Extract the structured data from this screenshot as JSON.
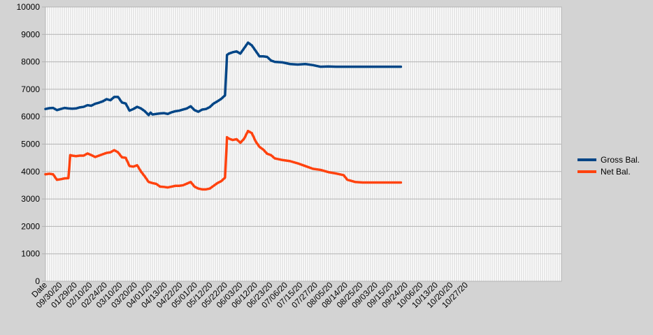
{
  "chart_data": {
    "type": "line",
    "title": "",
    "xlabel": "",
    "ylabel": "",
    "ylim": [
      0,
      10000
    ],
    "y_ticks": [
      "0",
      "1000",
      "2000",
      "3000",
      "4000",
      "5000",
      "6000",
      "7000",
      "8000",
      "9000",
      "10000"
    ],
    "x_tick_labels": [
      "Date",
      "09/30/20",
      "01/29/20",
      "02/10/20",
      "02/24/20",
      "03/10/20",
      "03/20/20",
      "04/01/20",
      "04/13/20",
      "04/22/20",
      "05/01/20",
      "05/12/20",
      "05/22/20",
      "06/03/20",
      "06/12/20",
      "06/23/20",
      "07/06/20",
      "07/15/20",
      "07/27/20",
      "08/05/20",
      "08/14/20",
      "08/25/20",
      "09/03/20",
      "09/15/20",
      "09/24/20",
      "10/06/20",
      "10/13/20",
      "10/20/20",
      "10/27/20"
    ],
    "grid": true,
    "legend_position": "right",
    "series": [
      {
        "name": "Gross Bal.",
        "color": "#004586",
        "points": [
          [
            0,
            6280
          ],
          [
            2,
            6310
          ],
          [
            4,
            6320
          ],
          [
            6,
            6240
          ],
          [
            8,
            6280
          ],
          [
            10,
            6320
          ],
          [
            12,
            6300
          ],
          [
            14,
            6290
          ],
          [
            16,
            6300
          ],
          [
            18,
            6340
          ],
          [
            20,
            6360
          ],
          [
            22,
            6420
          ],
          [
            24,
            6400
          ],
          [
            26,
            6470
          ],
          [
            28,
            6510
          ],
          [
            30,
            6560
          ],
          [
            32,
            6640
          ],
          [
            34,
            6600
          ],
          [
            36,
            6720
          ],
          [
            38,
            6720
          ],
          [
            40,
            6520
          ],
          [
            42,
            6480
          ],
          [
            44,
            6220
          ],
          [
            46,
            6280
          ],
          [
            48,
            6360
          ],
          [
            50,
            6300
          ],
          [
            52,
            6200
          ],
          [
            54,
            6060
          ],
          [
            55,
            6150
          ],
          [
            56,
            6080
          ],
          [
            58,
            6100
          ],
          [
            60,
            6120
          ],
          [
            62,
            6130
          ],
          [
            64,
            6100
          ],
          [
            66,
            6160
          ],
          [
            68,
            6200
          ],
          [
            70,
            6220
          ],
          [
            72,
            6260
          ],
          [
            74,
            6300
          ],
          [
            76,
            6380
          ],
          [
            78,
            6240
          ],
          [
            80,
            6180
          ],
          [
            82,
            6260
          ],
          [
            84,
            6280
          ],
          [
            86,
            6350
          ],
          [
            88,
            6480
          ],
          [
            90,
            6560
          ],
          [
            92,
            6650
          ],
          [
            94,
            6780
          ],
          [
            95,
            8250
          ],
          [
            96,
            8300
          ],
          [
            98,
            8350
          ],
          [
            100,
            8380
          ],
          [
            102,
            8300
          ],
          [
            104,
            8500
          ],
          [
            106,
            8700
          ],
          [
            107,
            8650
          ],
          [
            108,
            8600
          ],
          [
            110,
            8400
          ],
          [
            112,
            8200
          ],
          [
            114,
            8200
          ],
          [
            116,
            8180
          ],
          [
            118,
            8050
          ],
          [
            120,
            8000
          ],
          [
            124,
            7980
          ],
          [
            128,
            7920
          ],
          [
            132,
            7900
          ],
          [
            136,
            7920
          ],
          [
            140,
            7880
          ],
          [
            144,
            7820
          ],
          [
            148,
            7830
          ],
          [
            152,
            7820
          ],
          [
            156,
            7820
          ],
          [
            160,
            7820
          ],
          [
            170,
            7820
          ],
          [
            180,
            7820
          ],
          [
            186,
            7820
          ]
        ]
      },
      {
        "name": "Net Bal.",
        "color": "#ff420e",
        "points": [
          [
            0,
            3900
          ],
          [
            2,
            3920
          ],
          [
            4,
            3900
          ],
          [
            6,
            3700
          ],
          [
            8,
            3720
          ],
          [
            10,
            3750
          ],
          [
            12,
            3760
          ],
          [
            13,
            4600
          ],
          [
            14,
            4580
          ],
          [
            16,
            4560
          ],
          [
            18,
            4580
          ],
          [
            20,
            4580
          ],
          [
            22,
            4660
          ],
          [
            24,
            4600
          ],
          [
            26,
            4530
          ],
          [
            28,
            4580
          ],
          [
            30,
            4630
          ],
          [
            32,
            4680
          ],
          [
            34,
            4700
          ],
          [
            36,
            4780
          ],
          [
            38,
            4700
          ],
          [
            40,
            4520
          ],
          [
            42,
            4500
          ],
          [
            44,
            4200
          ],
          [
            46,
            4180
          ],
          [
            48,
            4230
          ],
          [
            50,
            4000
          ],
          [
            52,
            3820
          ],
          [
            54,
            3620
          ],
          [
            56,
            3580
          ],
          [
            58,
            3550
          ],
          [
            60,
            3450
          ],
          [
            62,
            3440
          ],
          [
            64,
            3420
          ],
          [
            66,
            3450
          ],
          [
            68,
            3480
          ],
          [
            70,
            3480
          ],
          [
            72,
            3500
          ],
          [
            74,
            3560
          ],
          [
            76,
            3620
          ],
          [
            78,
            3450
          ],
          [
            80,
            3380
          ],
          [
            82,
            3350
          ],
          [
            84,
            3350
          ],
          [
            86,
            3380
          ],
          [
            88,
            3480
          ],
          [
            90,
            3580
          ],
          [
            92,
            3650
          ],
          [
            94,
            3780
          ],
          [
            95,
            5250
          ],
          [
            96,
            5200
          ],
          [
            98,
            5150
          ],
          [
            100,
            5180
          ],
          [
            102,
            5050
          ],
          [
            104,
            5200
          ],
          [
            106,
            5480
          ],
          [
            108,
            5400
          ],
          [
            110,
            5100
          ],
          [
            112,
            4900
          ],
          [
            114,
            4800
          ],
          [
            116,
            4650
          ],
          [
            118,
            4600
          ],
          [
            120,
            4480
          ],
          [
            124,
            4420
          ],
          [
            128,
            4380
          ],
          [
            132,
            4300
          ],
          [
            136,
            4200
          ],
          [
            140,
            4100
          ],
          [
            144,
            4060
          ],
          [
            148,
            3980
          ],
          [
            152,
            3930
          ],
          [
            156,
            3870
          ],
          [
            158,
            3700
          ],
          [
            162,
            3620
          ],
          [
            166,
            3600
          ],
          [
            170,
            3600
          ],
          [
            180,
            3600
          ],
          [
            186,
            3600
          ]
        ]
      }
    ]
  }
}
